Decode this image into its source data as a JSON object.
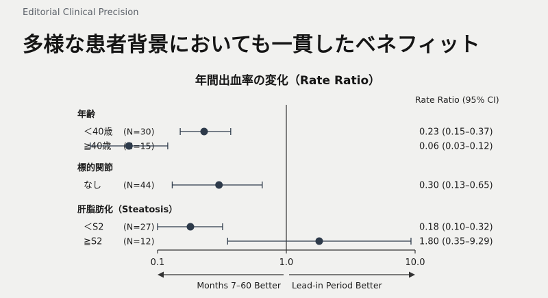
{
  "brand": "Editorial Clinical Precision",
  "headline": "多様な患者背景においても一貫したベネフィット",
  "chart_data": {
    "type": "forest",
    "title": "年間出血率の変化（Rate Ratio）",
    "ci_header": "Rate Ratio (95% CI)",
    "x_scale": "log",
    "xlim": [
      0.1,
      10.0
    ],
    "ticks": [
      "0.1",
      "1.0",
      "10.0"
    ],
    "reference_line": 1.0,
    "direction_left": "Months 7–60 Better",
    "direction_right": "Lead-in Period Better",
    "groups": [
      {
        "label": "年齢",
        "rows": [
          {
            "label": "＜40歳",
            "n": "(N=30)",
            "estimate": 0.23,
            "lower": 0.15,
            "upper": 0.37,
            "ci_text": "0.23 (0.15–0.37)"
          },
          {
            "label": "≧40歳",
            "n": "(N=15)",
            "estimate": 0.06,
            "lower": 0.03,
            "upper": 0.12,
            "ci_text": "0.06 (0.03–0.12)"
          }
        ]
      },
      {
        "label": "標的関節",
        "rows": [
          {
            "label": "なし",
            "n": "(N=44)",
            "estimate": 0.3,
            "lower": 0.13,
            "upper": 0.65,
            "ci_text": "0.30 (0.13–0.65)"
          }
        ]
      },
      {
        "label": "肝脂肪化（Steatosis）",
        "rows": [
          {
            "label": "＜S2",
            "n": "(N=27)",
            "estimate": 0.18,
            "lower": 0.1,
            "upper": 0.32,
            "ci_text": "0.18 (0.10–0.32)"
          },
          {
            "label": "≧S2",
            "n": "(N=12)",
            "estimate": 1.8,
            "lower": 0.35,
            "upper": 9.29,
            "ci_text": "1.80 (0.35–9.29)"
          }
        ]
      }
    ],
    "colors": {
      "marker": "#2d3a4a",
      "axis": "#333333",
      "text": "#1b1b1b"
    }
  }
}
